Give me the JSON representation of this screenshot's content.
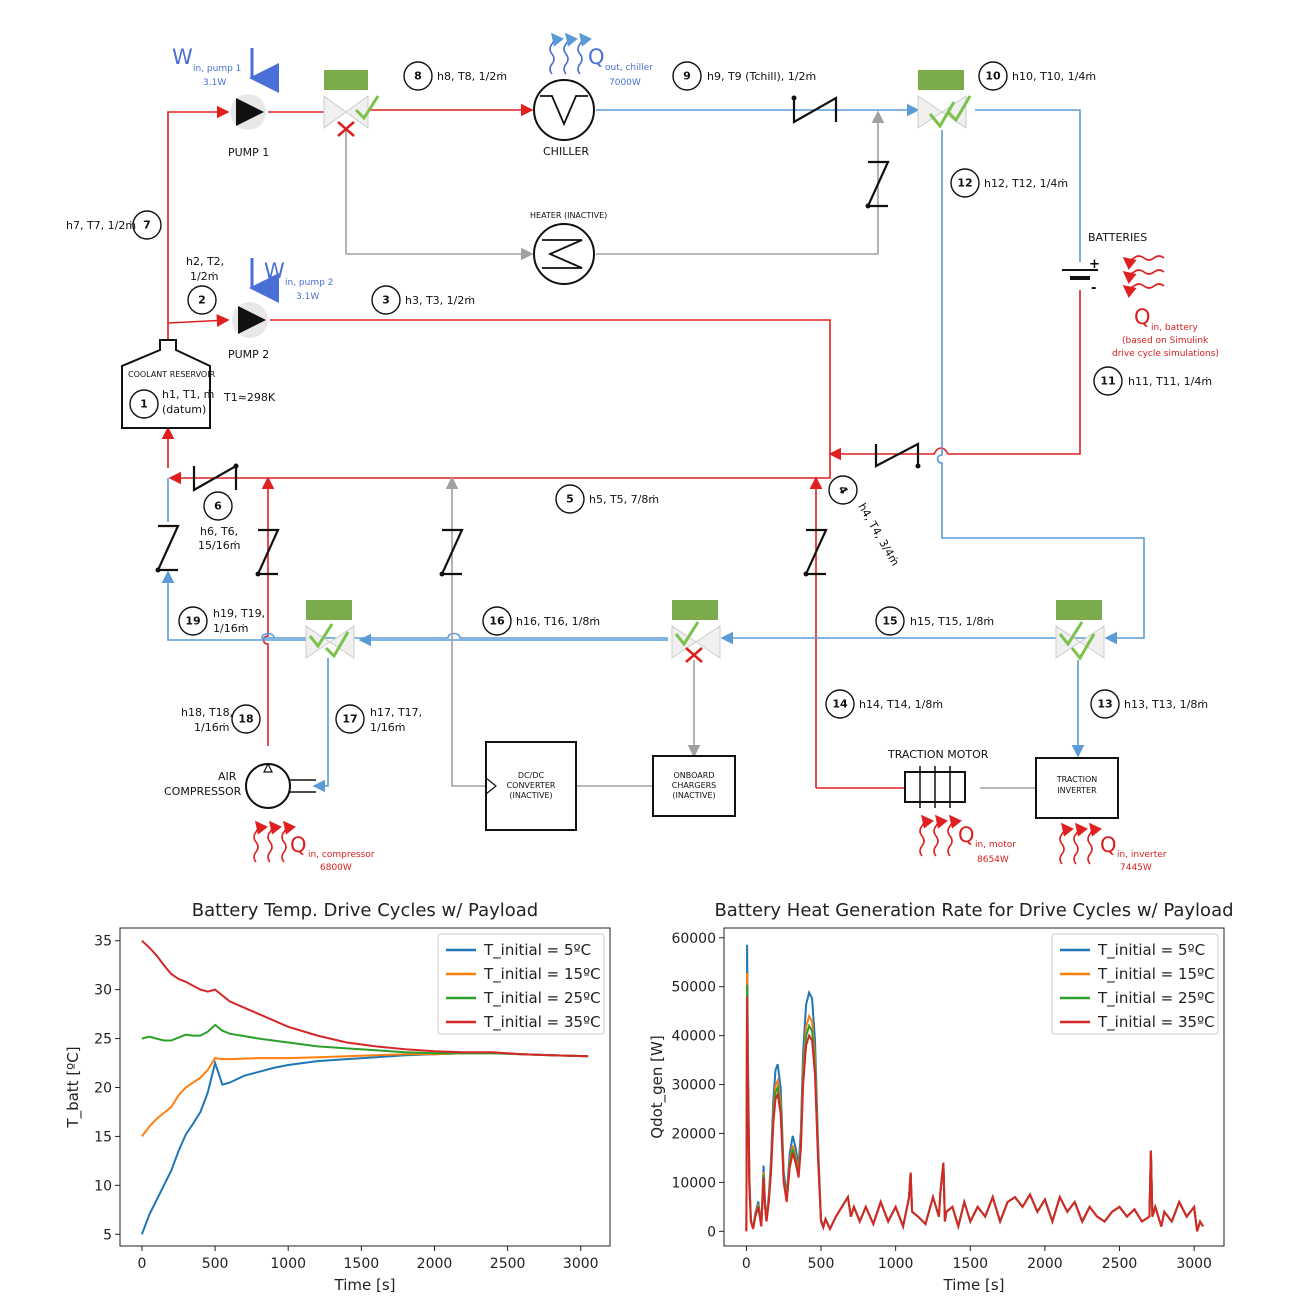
{
  "diagram": {
    "pump1": {
      "label": "PUMP 1",
      "work_symbol": "W",
      "work_sub": "in, pump 1",
      "power": "3.1W"
    },
    "pump2": {
      "label": "PUMP 2",
      "work_symbol": "W",
      "work_sub": "in, pump 2",
      "power": "3.1W"
    },
    "chiller": {
      "label": "CHILLER",
      "heat_symbol": "Q",
      "heat_sub": "out, chiller",
      "power": "7000W"
    },
    "heater": {
      "label": "HEATER (INACTIVE)"
    },
    "batteries": {
      "label": "BATTERIES",
      "heat_symbol": "Q",
      "heat_sub": "in, battery",
      "note1": "(based on Simulink",
      "note2": "drive cycle simulations)",
      "plus": "+",
      "minus": "-"
    },
    "reservoir": {
      "label": "COOLANT RESERVOIR",
      "state_line1": "h1, T1, ṁ",
      "state_line2": "(datum)",
      "temp": "T1≈298K"
    },
    "compressor": {
      "label1": "AIR",
      "label2": "COMPRESSOR",
      "heat_symbol": "Q",
      "heat_sub": "in, compressor",
      "power": "6800W"
    },
    "dcdc": {
      "line1": "DC/DC",
      "line2": "CONVERTER",
      "line3": "(INACTIVE)"
    },
    "chargers": {
      "line1": "ONBOARD",
      "line2": "CHARGERS",
      "line3": "(INACTIVE)"
    },
    "motor": {
      "label": "TRACTION MOTOR",
      "heat_symbol": "Q",
      "heat_sub": "in, motor",
      "power": "8654W"
    },
    "inverter": {
      "line1": "TRACTION",
      "line2": "INVERTER",
      "heat_symbol": "Q",
      "heat_sub": "in, inverter",
      "power": "7445W"
    },
    "states": {
      "s1": "1",
      "s2": "2",
      "s3": "3",
      "s4": "4",
      "s5": "5",
      "s6": "6",
      "s7": "7",
      "s8": "8",
      "s9": "9",
      "s10": "10",
      "s11": "11",
      "s12": "12",
      "s13": "13",
      "s14": "14",
      "s15": "15",
      "s16": "16",
      "s17": "17",
      "s18": "18",
      "s19": "19",
      "l2a": "h2, T2,",
      "l2b": "1/2ṁ",
      "l3": "h3, T3, 1/2ṁ",
      "l4": "h4, T4, 3/4ṁ",
      "l5": "h5, T5, 7/8ṁ",
      "l6a": "h6, T6,",
      "l6b": "15/16ṁ",
      "l7": "h7, T7, 1/2ṁ",
      "l8": "h8, T8, 1/2ṁ",
      "l9": "h9, T9 (Tchill), 1/2ṁ",
      "l10": "h10, T10, 1/4ṁ",
      "l11": "h11, T11, 1/4ṁ",
      "l12": "h12, T12, 1/4ṁ",
      "l13": "h13, T13, 1/8ṁ",
      "l14": "h14, T14, 1/8ṁ",
      "l15": "h15, T15, 1/8ṁ",
      "l16": "h16, T16, 1/8ṁ",
      "l17a": "h17, T17,",
      "l17b": "1/16ṁ",
      "l18a": "h18, T18,",
      "l18b": "1/16ṁ",
      "l19a": "h19, T19,",
      "l19b": "1/16ṁ"
    }
  },
  "chart_data": [
    {
      "type": "line",
      "title": "Battery Temp. Drive Cycles w/ Payload",
      "xlabel": "Time [s]",
      "ylabel": "T_batt [ºC]",
      "xlim": [
        -150,
        3200
      ],
      "ylim": [
        3.8,
        36.3
      ],
      "xticks": [
        0,
        500,
        1000,
        1500,
        2000,
        2500,
        3000
      ],
      "yticks": [
        5,
        10,
        15,
        20,
        25,
        30,
        35
      ],
      "legend_position": "upper-right",
      "series": [
        {
          "name": "T_initial = 5ºC",
          "color": "#1f77b4",
          "x": [
            0,
            50,
            100,
            150,
            200,
            250,
            300,
            350,
            400,
            450,
            500,
            550,
            600,
            700,
            800,
            900,
            1000,
            1200,
            1400,
            1600,
            1800,
            2000,
            2200,
            2400,
            2600,
            2800,
            3050
          ],
          "y": [
            5.0,
            7.0,
            8.5,
            10.0,
            11.5,
            13.5,
            15.2,
            16.3,
            17.5,
            19.5,
            22.5,
            20.3,
            20.5,
            21.2,
            21.6,
            22.0,
            22.3,
            22.7,
            22.9,
            23.1,
            23.3,
            23.4,
            23.5,
            23.5,
            23.4,
            23.3,
            23.2
          ]
        },
        {
          "name": "T_initial = 15ºC",
          "color": "#ff7f0e",
          "x": [
            0,
            50,
            100,
            150,
            200,
            250,
            300,
            350,
            400,
            450,
            500,
            550,
            600,
            800,
            1000,
            1200,
            1400,
            1600,
            1800,
            2000,
            2200,
            2400,
            2600,
            2800,
            3050
          ],
          "y": [
            15.0,
            16.0,
            16.8,
            17.4,
            18.0,
            19.2,
            20.0,
            20.5,
            21.0,
            21.8,
            23.0,
            22.9,
            22.9,
            23.0,
            23.0,
            23.1,
            23.2,
            23.3,
            23.4,
            23.4,
            23.5,
            23.5,
            23.4,
            23.3,
            23.2
          ]
        },
        {
          "name": "T_initial = 25ºC",
          "color": "#2ca02c",
          "x": [
            0,
            50,
            100,
            150,
            200,
            250,
            300,
            350,
            400,
            450,
            500,
            550,
            600,
            800,
            1000,
            1200,
            1400,
            1600,
            1800,
            2000,
            2200,
            2400,
            2600,
            2800,
            3050
          ],
          "y": [
            25.0,
            25.2,
            25.0,
            24.8,
            24.8,
            25.1,
            25.4,
            25.3,
            25.3,
            25.7,
            26.4,
            25.8,
            25.5,
            25.0,
            24.6,
            24.2,
            24.0,
            23.8,
            23.6,
            23.5,
            23.5,
            23.5,
            23.4,
            23.3,
            23.2
          ]
        },
        {
          "name": "T_initial = 35ºC",
          "color": "#d62728",
          "x": [
            0,
            50,
            100,
            150,
            200,
            250,
            300,
            350,
            400,
            450,
            500,
            550,
            600,
            800,
            1000,
            1200,
            1400,
            1600,
            1800,
            2000,
            2200,
            2400,
            2600,
            2800,
            3050
          ],
          "y": [
            35.0,
            34.3,
            33.5,
            32.5,
            31.6,
            31.1,
            30.8,
            30.4,
            30.0,
            29.8,
            30.0,
            29.4,
            28.8,
            27.5,
            26.2,
            25.3,
            24.6,
            24.2,
            23.9,
            23.7,
            23.6,
            23.6,
            23.4,
            23.3,
            23.2
          ]
        }
      ]
    },
    {
      "type": "line",
      "title": "Battery Heat Generation Rate for Drive Cycles w/ Payload",
      "xlabel": "Time [s]",
      "ylabel": "Qdot_gen [W]",
      "xlim": [
        -150,
        3200
      ],
      "ylim": [
        -3000,
        62000
      ],
      "xticks": [
        0,
        500,
        1000,
        1500,
        2000,
        2500,
        3000
      ],
      "yticks": [
        0,
        10000,
        20000,
        30000,
        40000,
        50000,
        60000
      ],
      "legend_position": "upper-right",
      "series": [
        {
          "name": "T_initial = 5ºC",
          "color": "#1f77b4",
          "scale": 1.22
        },
        {
          "name": "T_initial = 15ºC",
          "color": "#ff7f0e",
          "scale": 1.1
        },
        {
          "name": "T_initial = 25ºC",
          "color": "#2ca02c",
          "scale": 1.05
        },
        {
          "name": "T_initial = 35ºC",
          "color": "#d62728",
          "scale": 1.0
        }
      ],
      "base_profile": {
        "x": [
          0,
          5,
          10,
          20,
          30,
          45,
          60,
          80,
          100,
          115,
          125,
          135,
          150,
          165,
          180,
          195,
          210,
          230,
          250,
          270,
          290,
          310,
          330,
          350,
          365,
          380,
          400,
          420,
          440,
          460,
          480,
          500,
          515,
          530,
          560,
          600,
          640,
          680,
          700,
          720,
          760,
          800,
          850,
          900,
          950,
          1000,
          1050,
          1090,
          1100,
          1110,
          1150,
          1200,
          1250,
          1290,
          1300,
          1320,
          1330,
          1340,
          1380,
          1420,
          1460,
          1500,
          1550,
          1600,
          1650,
          1700,
          1750,
          1800,
          1850,
          1900,
          1950,
          2000,
          2050,
          2100,
          2150,
          2200,
          2250,
          2300,
          2350,
          2400,
          2450,
          2500,
          2550,
          2600,
          2650,
          2700,
          2710,
          2720,
          2740,
          2780,
          2800,
          2850,
          2900,
          2950,
          3000,
          3020,
          3040,
          3060
        ],
        "y": [
          0,
          48000,
          30000,
          9000,
          2000,
          500,
          3000,
          5000,
          1000,
          11000,
          5000,
          2000,
          6000,
          12000,
          22000,
          27000,
          28000,
          24000,
          10000,
          6000,
          13000,
          16000,
          14000,
          11000,
          17000,
          30000,
          38000,
          40000,
          39000,
          32000,
          15000,
          2000,
          800,
          2500,
          500,
          3000,
          5000,
          7000,
          3000,
          5000,
          2000,
          5000,
          1500,
          6000,
          2000,
          5000,
          1000,
          7000,
          12000,
          4000,
          3000,
          1500,
          7000,
          3000,
          8000,
          14000,
          2000,
          4000,
          5000,
          1000,
          6000,
          2000,
          5000,
          3000,
          7000,
          2000,
          6000,
          7000,
          5000,
          7500,
          4000,
          6500,
          2000,
          7000,
          4000,
          6000,
          2000,
          5000,
          3000,
          2000,
          4000,
          5000,
          3000,
          4500,
          2000,
          3000,
          16500,
          3000,
          5000,
          1000,
          4000,
          2000,
          6000,
          3000,
          5000,
          0,
          2000,
          1000
        ]
      }
    }
  ]
}
